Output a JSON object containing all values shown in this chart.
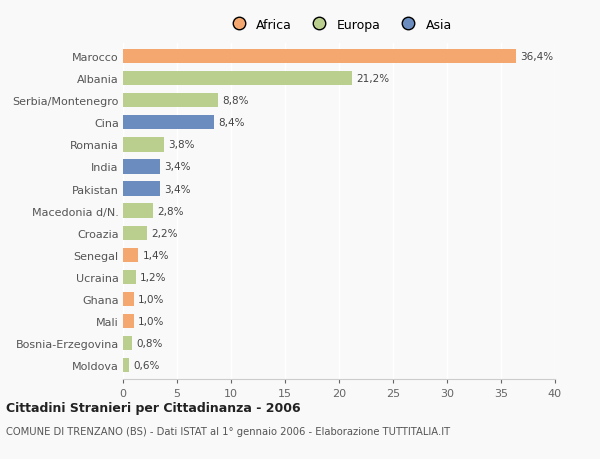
{
  "countries": [
    "Marocco",
    "Albania",
    "Serbia/Montenegro",
    "Cina",
    "Romania",
    "India",
    "Pakistan",
    "Macedonia d/N.",
    "Croazia",
    "Senegal",
    "Ucraina",
    "Ghana",
    "Mali",
    "Bosnia-Erzegovina",
    "Moldova"
  ],
  "values": [
    36.4,
    21.2,
    8.8,
    8.4,
    3.8,
    3.4,
    3.4,
    2.8,
    2.2,
    1.4,
    1.2,
    1.0,
    1.0,
    0.8,
    0.6
  ],
  "labels": [
    "36,4%",
    "21,2%",
    "8,8%",
    "8,4%",
    "3,8%",
    "3,4%",
    "3,4%",
    "2,8%",
    "2,2%",
    "1,4%",
    "1,2%",
    "1,0%",
    "1,0%",
    "0,8%",
    "0,6%"
  ],
  "continents": [
    "Africa",
    "Europa",
    "Europa",
    "Asia",
    "Europa",
    "Asia",
    "Asia",
    "Europa",
    "Europa",
    "Africa",
    "Europa",
    "Africa",
    "Africa",
    "Europa",
    "Europa"
  ],
  "colors": {
    "Africa": "#F4A870",
    "Europa": "#BACF8E",
    "Asia": "#6B8CBE"
  },
  "africa_color": "#F4A870",
  "europa_color": "#BACF8E",
  "asia_color": "#6B8CBE",
  "xlim": [
    0,
    40
  ],
  "xticks": [
    0,
    5,
    10,
    15,
    20,
    25,
    30,
    35,
    40
  ],
  "title_bold": "Cittadini Stranieri per Cittadinanza - 2006",
  "subtitle": "COMUNE DI TRENZANO (BS) - Dati ISTAT al 1° gennaio 2006 - Elaborazione TUTTITALIA.IT",
  "background_color": "#f9f9f9"
}
